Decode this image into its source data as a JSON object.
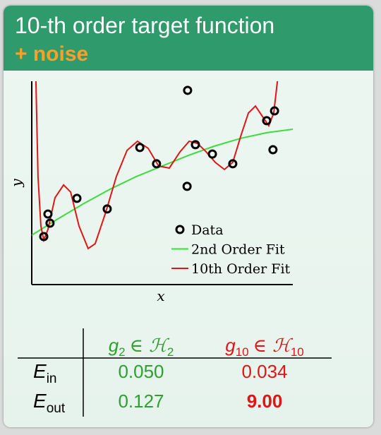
{
  "header": {
    "title": "10-th order target function",
    "subtitle": "+ noise"
  },
  "chart_data": {
    "type": "scatter",
    "xlabel": "x",
    "ylabel": "y",
    "xlim": [
      0,
      1
    ],
    "ylim": [
      0,
      1
    ],
    "legend": "lower right",
    "series": [
      {
        "name": "Data",
        "type": "scatter",
        "color": "#000000",
        "x": [
          0.046,
          0.062,
          0.07,
          0.173,
          0.289,
          0.414,
          0.478,
          0.597,
          0.595,
          0.627,
          0.692,
          0.77,
          0.9,
          0.93,
          0.924
        ],
        "values": [
          0.236,
          0.347,
          0.302,
          0.424,
          0.372,
          0.674,
          0.594,
          0.955,
          0.483,
          0.688,
          0.642,
          0.594,
          0.806,
          0.854,
          0.663
        ]
      },
      {
        "name": "2nd Order Fit",
        "type": "line",
        "color": "#3ddc3d",
        "x": [
          0,
          0.1,
          0.2,
          0.3,
          0.4,
          0.5,
          0.6,
          0.7,
          0.8,
          0.9,
          1.0
        ],
        "values": [
          0.243,
          0.323,
          0.399,
          0.469,
          0.531,
          0.583,
          0.635,
          0.681,
          0.719,
          0.747,
          0.764
        ]
      },
      {
        "name": "10th Order Fit",
        "type": "line",
        "color": "#e01515",
        "x": [
          0.016,
          0.024,
          0.035,
          0.046,
          0.062,
          0.089,
          0.122,
          0.149,
          0.181,
          0.216,
          0.243,
          0.284,
          0.324,
          0.365,
          0.405,
          0.446,
          0.486,
          0.527,
          0.568,
          0.603,
          0.635,
          0.668,
          0.703,
          0.738,
          0.77,
          0.803,
          0.83,
          0.857,
          0.884,
          0.908,
          0.927,
          0.941
        ],
        "values": [
          1.0,
          0.531,
          0.288,
          0.219,
          0.271,
          0.427,
          0.49,
          0.455,
          0.288,
          0.177,
          0.201,
          0.358,
          0.531,
          0.66,
          0.705,
          0.67,
          0.583,
          0.573,
          0.653,
          0.705,
          0.694,
          0.653,
          0.601,
          0.566,
          0.601,
          0.74,
          0.844,
          0.878,
          0.826,
          0.781,
          0.844,
          1.0
        ]
      }
    ]
  },
  "table": {
    "columns": [
      {
        "symbol": "g",
        "subscript": "2",
        "set": "∈ ℋ",
        "set_subscript": "2",
        "color": "#2ea02e"
      },
      {
        "symbol": "g",
        "subscript": "10",
        "set": "∈ ℋ",
        "set_subscript": "10",
        "color": "#e01515"
      }
    ],
    "rows": [
      {
        "symbol": "E",
        "subscript": "in",
        "cells": [
          "0.050",
          "0.034"
        ]
      },
      {
        "symbol": "E",
        "subscript": "out",
        "cells": [
          "0.127",
          "9.00"
        ],
        "bold": [
          false,
          true
        ]
      }
    ]
  }
}
